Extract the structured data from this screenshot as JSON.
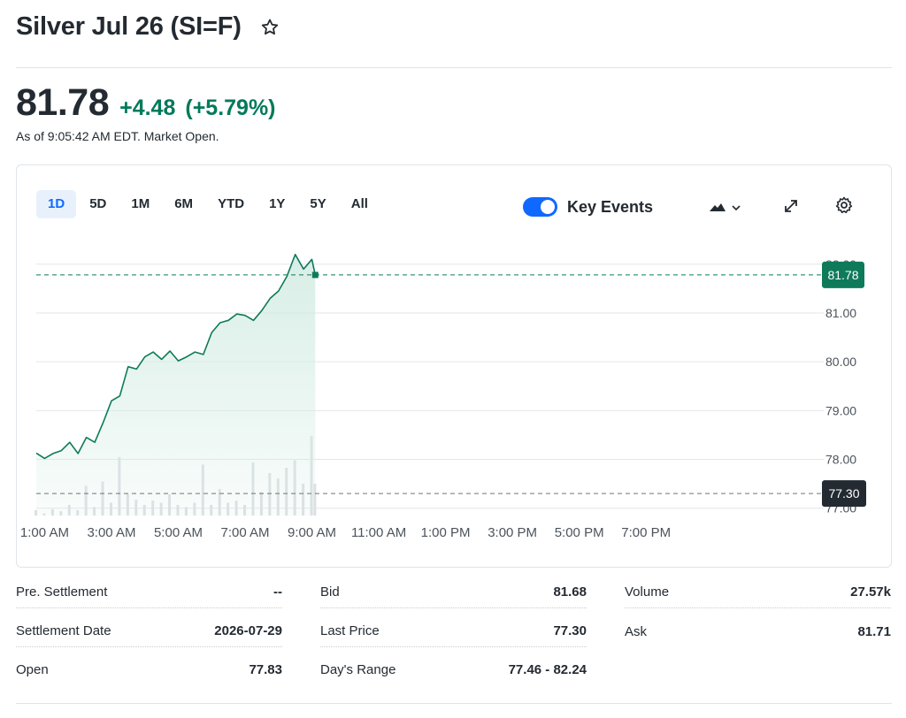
{
  "header": {
    "title": "Silver Jul 26 (SI=F)",
    "watch_icon": "star-icon"
  },
  "quote": {
    "price": "81.78",
    "change": "+4.48",
    "change_percent": "(+5.79%)",
    "as_of": "As of 9:05:42 AM EDT. Market Open.",
    "up_color": "#007a5a"
  },
  "chart_controls": {
    "ranges": [
      {
        "label": "1D",
        "active": true
      },
      {
        "label": "5D",
        "active": false
      },
      {
        "label": "1M",
        "active": false
      },
      {
        "label": "6M",
        "active": false
      },
      {
        "label": "YTD",
        "active": false
      },
      {
        "label": "1Y",
        "active": false
      },
      {
        "label": "5Y",
        "active": false
      },
      {
        "label": "All",
        "active": false
      }
    ],
    "key_events_label": "Key Events",
    "key_events_on": true,
    "chart_type_icon": "mountain-chart-icon",
    "expand_icon": "expand-icon",
    "settings_icon": "gear-icon"
  },
  "chart_data": {
    "type": "area",
    "x_ticks": [
      "1:00 AM",
      "3:00 AM",
      "5:00 AM",
      "7:00 AM",
      "9:00 AM",
      "11:00 AM",
      "1:00 PM",
      "3:00 PM",
      "5:00 PM",
      "7:00 PM"
    ],
    "y_ticks": [
      "81.00",
      "80.00",
      "79.00",
      "78.00"
    ],
    "y_ticks_partial": [
      "82.00",
      "77.00"
    ],
    "ylim": [
      76.85,
      82.25
    ],
    "x_range_hours": [
      0.75,
      24.0
    ],
    "current_price_label": "81.78",
    "current_price": 81.78,
    "previous_close_label": "77.30",
    "previous_close": 77.3,
    "series": [
      {
        "x": [
          0.75,
          1.0,
          1.25,
          1.5,
          1.75,
          2.0,
          2.25,
          2.5,
          2.75,
          3.0,
          3.25,
          3.5,
          3.75,
          4.0,
          4.25,
          4.5,
          4.75,
          5.0,
          5.25,
          5.5,
          5.75,
          6.0,
          6.25,
          6.5,
          6.75,
          7.0,
          7.25,
          7.5,
          7.75,
          8.0,
          8.25,
          8.5,
          8.75,
          9.0,
          9.1
        ],
        "y": [
          78.13,
          78.02,
          78.12,
          78.18,
          78.35,
          78.12,
          78.45,
          78.35,
          78.75,
          79.2,
          79.3,
          79.9,
          79.85,
          80.1,
          80.2,
          80.05,
          80.22,
          80.02,
          80.1,
          80.2,
          80.15,
          80.6,
          80.8,
          80.85,
          80.98,
          80.95,
          80.85,
          81.05,
          81.3,
          81.45,
          81.75,
          82.2,
          81.9,
          82.1,
          81.78
        ]
      }
    ],
    "volume": [
      0.05,
      0.02,
      0.06,
      0.04,
      0.1,
      0.05,
      0.28,
      0.08,
      0.32,
      0.12,
      0.55,
      0.2,
      0.15,
      0.1,
      0.14,
      0.12,
      0.2,
      0.1,
      0.08,
      0.12,
      0.48,
      0.1,
      0.25,
      0.12,
      0.14,
      0.1,
      0.5,
      0.22,
      0.4,
      0.35,
      0.45,
      0.52,
      0.3,
      0.75,
      0.3
    ],
    "grid": true,
    "line_color": "#0e7a5a",
    "fill_color": "#d6ede5",
    "prev_close_color": "#232a31"
  },
  "stats": {
    "col1": [
      {
        "label": "Pre. Settlement",
        "value": "--"
      },
      {
        "label": "Settlement Date",
        "value": "2026-07-29"
      },
      {
        "label": "Open",
        "value": "77.83"
      }
    ],
    "col2": [
      {
        "label": "Bid",
        "value": "81.68"
      },
      {
        "label": "Last Price",
        "value": "77.30"
      },
      {
        "label": "Day's Range",
        "value": "77.46 - 82.24"
      }
    ],
    "col3": [
      {
        "label": "Volume",
        "value": "27.57k"
      },
      {
        "label": "Ask",
        "value": "81.71"
      }
    ]
  }
}
